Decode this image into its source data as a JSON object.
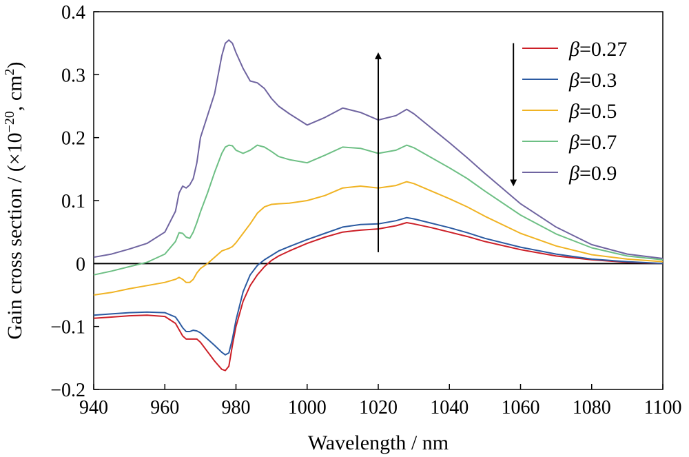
{
  "chart_data": {
    "type": "line",
    "xlabel": "Wavelength / nm",
    "ylabel_main": "Gain cross section / (×10",
    "ylabel_exp": "−20",
    "ylabel_mid": ", cm",
    "ylabel_exp2": "2",
    "ylabel_end": ")",
    "xlim": [
      940,
      1100
    ],
    "ylim": [
      -0.2,
      0.4
    ],
    "x_ticks": [
      940,
      960,
      980,
      1000,
      1020,
      1040,
      1060,
      1080,
      1100
    ],
    "y_ticks": [
      -0.2,
      -0.1,
      0,
      0.1,
      0.2,
      0.3,
      0.4
    ],
    "y_tick_labels": [
      "−0.2",
      "−0.1",
      "0",
      "0.1",
      "0.2",
      "0.3",
      "0.4"
    ],
    "zero_line": true,
    "grid": false,
    "legend_position": "top-right",
    "arrows": [
      {
        "x": 1020,
        "y_from": 0.018,
        "y_to": 0.33,
        "direction": "up"
      },
      {
        "x": 1058,
        "y_from": 0.35,
        "y_to": 0.128,
        "direction": "down"
      }
    ],
    "x": [
      940,
      945,
      950,
      955,
      960,
      963,
      964,
      965,
      966,
      967,
      968,
      969,
      970,
      972,
      974,
      976,
      977,
      978,
      979,
      980,
      982,
      984,
      986,
      988,
      990,
      992,
      995,
      1000,
      1005,
      1010,
      1015,
      1020,
      1025,
      1028,
      1030,
      1035,
      1040,
      1045,
      1050,
      1060,
      1070,
      1080,
      1090,
      1100
    ],
    "series": [
      {
        "name_italic": "β",
        "name_rest": "=0.27",
        "color": "#cc1f27",
        "values": [
          -0.087,
          -0.085,
          -0.083,
          -0.082,
          -0.084,
          -0.095,
          -0.105,
          -0.115,
          -0.12,
          -0.12,
          -0.12,
          -0.12,
          -0.125,
          -0.14,
          -0.155,
          -0.168,
          -0.17,
          -0.163,
          -0.13,
          -0.1,
          -0.06,
          -0.035,
          -0.018,
          -0.005,
          0.005,
          0.012,
          0.02,
          0.032,
          0.042,
          0.05,
          0.053,
          0.055,
          0.06,
          0.065,
          0.063,
          0.057,
          0.05,
          0.043,
          0.035,
          0.022,
          0.012,
          0.006,
          0.002,
          0.0
        ]
      },
      {
        "name_italic": "β",
        "name_rest": "=0.3",
        "color": "#2b5aa1",
        "values": [
          -0.082,
          -0.08,
          -0.078,
          -0.077,
          -0.078,
          -0.085,
          -0.093,
          -0.102,
          -0.108,
          -0.108,
          -0.106,
          -0.107,
          -0.11,
          -0.12,
          -0.13,
          -0.141,
          -0.145,
          -0.142,
          -0.12,
          -0.09,
          -0.045,
          -0.018,
          -0.003,
          0.006,
          0.013,
          0.02,
          0.027,
          0.038,
          0.048,
          0.058,
          0.062,
          0.063,
          0.068,
          0.073,
          0.071,
          0.064,
          0.057,
          0.049,
          0.04,
          0.026,
          0.015,
          0.007,
          0.003,
          0.0
        ]
      },
      {
        "name_italic": "β",
        "name_rest": "=0.5",
        "color": "#f0b323",
        "values": [
          -0.05,
          -0.046,
          -0.04,
          -0.035,
          -0.03,
          -0.025,
          -0.022,
          -0.025,
          -0.03,
          -0.03,
          -0.025,
          -0.015,
          -0.008,
          0.0,
          0.01,
          0.02,
          0.022,
          0.024,
          0.027,
          0.033,
          0.048,
          0.063,
          0.08,
          0.09,
          0.094,
          0.095,
          0.096,
          0.1,
          0.108,
          0.12,
          0.123,
          0.12,
          0.124,
          0.13,
          0.127,
          0.115,
          0.103,
          0.09,
          0.075,
          0.048,
          0.028,
          0.014,
          0.007,
          0.003
        ]
      },
      {
        "name_italic": "β",
        "name_rest": "=0.7",
        "color": "#6dbf84",
        "values": [
          -0.018,
          -0.012,
          -0.005,
          0.002,
          0.015,
          0.035,
          0.049,
          0.048,
          0.042,
          0.04,
          0.05,
          0.065,
          0.082,
          0.112,
          0.145,
          0.175,
          0.185,
          0.188,
          0.187,
          0.18,
          0.175,
          0.18,
          0.188,
          0.185,
          0.178,
          0.17,
          0.165,
          0.16,
          0.172,
          0.185,
          0.183,
          0.175,
          0.18,
          0.188,
          0.184,
          0.168,
          0.152,
          0.135,
          0.115,
          0.077,
          0.047,
          0.025,
          0.012,
          0.006
        ]
      },
      {
        "name_italic": "β",
        "name_rest": "=0.9",
        "color": "#6f64a0",
        "values": [
          0.01,
          0.015,
          0.023,
          0.032,
          0.05,
          0.083,
          0.112,
          0.123,
          0.12,
          0.125,
          0.135,
          0.16,
          0.2,
          0.235,
          0.27,
          0.33,
          0.35,
          0.355,
          0.35,
          0.335,
          0.31,
          0.29,
          0.287,
          0.278,
          0.262,
          0.25,
          0.238,
          0.22,
          0.232,
          0.247,
          0.24,
          0.228,
          0.235,
          0.245,
          0.238,
          0.215,
          0.192,
          0.168,
          0.143,
          0.095,
          0.058,
          0.03,
          0.015,
          0.008
        ]
      }
    ]
  }
}
